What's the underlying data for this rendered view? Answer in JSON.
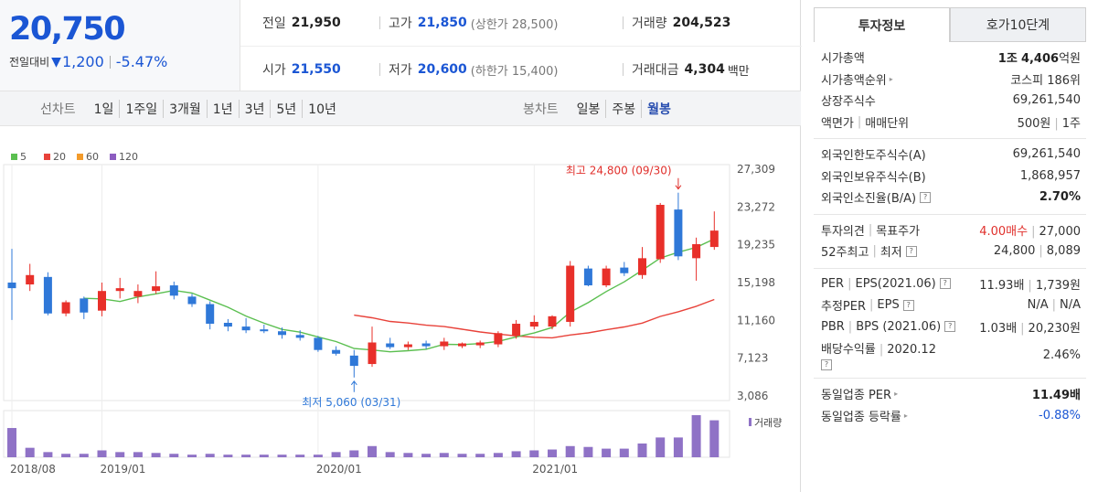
{
  "price": {
    "current": "20,750",
    "change_label": "전일대비",
    "change": "1,200",
    "change_pct": "-5.47%",
    "color": "#1b56d4"
  },
  "summary": {
    "prev_label": "전일",
    "prev": "21,950",
    "high_label": "고가",
    "high": "21,850",
    "upper_limit": "(상한가 28,500)",
    "volume_label": "거래량",
    "volume": "204,523",
    "open_label": "시가",
    "open": "21,550",
    "low_label": "저가",
    "low": "20,600",
    "lower_limit": "(하한가 15,400)",
    "amount_label": "거래대금",
    "amount": "4,304",
    "amount_unit": "백만"
  },
  "line_tabs": {
    "label": "선차트",
    "items": [
      "1일",
      "1주일",
      "3개월",
      "1년",
      "3년",
      "5년",
      "10년"
    ]
  },
  "candle_tabs": {
    "label": "봉차트",
    "items": [
      "일봉",
      "주봉",
      "월봉"
    ],
    "selected": "월봉"
  },
  "chart_data": {
    "type": "candlestick",
    "legend": [
      "5",
      "20",
      "60",
      "120"
    ],
    "legend_colors": [
      "#5bbf50",
      "#e8423a",
      "#f39b2b",
      "#8c5cc0"
    ],
    "y_ticks": [
      "27,309",
      "23,272",
      "19,235",
      "15,198",
      "11,160",
      "7,123",
      "3,086"
    ],
    "ylim": [
      3086,
      27309
    ],
    "x_labels": [
      "2018/08",
      "2019/01",
      "2020/01",
      "2021/01"
    ],
    "volume_label": "거래량",
    "high_annotation": "최고 24,800 (09/30)",
    "low_annotation": "최저 5,060 (03/31)",
    "candles": [
      {
        "o": 15200,
        "h": 18800,
        "l": 11200,
        "c": 14600
      },
      {
        "o": 15000,
        "h": 17200,
        "l": 14300,
        "c": 16000
      },
      {
        "o": 15800,
        "h": 16300,
        "l": 11700,
        "c": 11900
      },
      {
        "o": 11900,
        "h": 13300,
        "l": 11600,
        "c": 13100
      },
      {
        "o": 13500,
        "h": 13700,
        "l": 11300,
        "c": 12000
      },
      {
        "o": 12200,
        "h": 15200,
        "l": 11600,
        "c": 14300
      },
      {
        "o": 14300,
        "h": 15700,
        "l": 13500,
        "c": 14600
      },
      {
        "o": 13700,
        "h": 15000,
        "l": 13000,
        "c": 14300
      },
      {
        "o": 14300,
        "h": 16400,
        "l": 14000,
        "c": 14800
      },
      {
        "o": 14900,
        "h": 15300,
        "l": 13400,
        "c": 13800
      },
      {
        "o": 13700,
        "h": 14000,
        "l": 12600,
        "c": 12900
      },
      {
        "o": 12900,
        "h": 13200,
        "l": 10200,
        "c": 10800
      },
      {
        "o": 10900,
        "h": 11300,
        "l": 10000,
        "c": 10500
      },
      {
        "o": 10500,
        "h": 11400,
        "l": 9800,
        "c": 10100
      },
      {
        "o": 10200,
        "h": 10700,
        "l": 9800,
        "c": 10000
      },
      {
        "o": 10000,
        "h": 10400,
        "l": 9200,
        "c": 9600
      },
      {
        "o": 9600,
        "h": 10100,
        "l": 9000,
        "c": 9300
      },
      {
        "o": 9300,
        "h": 9500,
        "l": 7800,
        "c": 8000
      },
      {
        "o": 8000,
        "h": 8400,
        "l": 7400,
        "c": 7600
      },
      {
        "o": 7400,
        "h": 8000,
        "l": 5060,
        "c": 6300
      },
      {
        "o": 6500,
        "h": 10500,
        "l": 6200,
        "c": 8800
      },
      {
        "o": 8700,
        "h": 9300,
        "l": 8100,
        "c": 8300
      },
      {
        "o": 8300,
        "h": 8900,
        "l": 8000,
        "c": 8600
      },
      {
        "o": 8700,
        "h": 9000,
        "l": 8100,
        "c": 8400
      },
      {
        "o": 8400,
        "h": 9300,
        "l": 8000,
        "c": 8900
      },
      {
        "o": 8400,
        "h": 8800,
        "l": 8200,
        "c": 8700
      },
      {
        "o": 8500,
        "h": 9000,
        "l": 8200,
        "c": 8800
      },
      {
        "o": 8600,
        "h": 10000,
        "l": 8300,
        "c": 9800
      },
      {
        "o": 9500,
        "h": 11200,
        "l": 9200,
        "c": 10800
      },
      {
        "o": 10500,
        "h": 11700,
        "l": 10200,
        "c": 11000
      },
      {
        "o": 10500,
        "h": 11700,
        "l": 10200,
        "c": 11600
      },
      {
        "o": 11000,
        "h": 17500,
        "l": 10500,
        "c": 17000
      },
      {
        "o": 16700,
        "h": 17000,
        "l": 14800,
        "c": 14900
      },
      {
        "o": 14900,
        "h": 17000,
        "l": 14700,
        "c": 16700
      },
      {
        "o": 16800,
        "h": 17400,
        "l": 15900,
        "c": 16200
      },
      {
        "o": 16000,
        "h": 19000,
        "l": 15600,
        "c": 17800
      },
      {
        "o": 17700,
        "h": 23700,
        "l": 17300,
        "c": 23500
      },
      {
        "o": 23000,
        "h": 24800,
        "l": 17600,
        "c": 18000
      },
      {
        "o": 17800,
        "h": 20000,
        "l": 15400,
        "c": 19300
      },
      {
        "o": 19000,
        "h": 22800,
        "l": 18700,
        "c": 20750
      }
    ],
    "volume_levels": [
      0.68,
      0.22,
      0.12,
      0.08,
      0.08,
      0.16,
      0.12,
      0.12,
      0.1,
      0.08,
      0.06,
      0.08,
      0.06,
      0.06,
      0.06,
      0.06,
      0.06,
      0.06,
      0.12,
      0.16,
      0.26,
      0.12,
      0.1,
      0.08,
      0.1,
      0.08,
      0.08,
      0.1,
      0.14,
      0.16,
      0.18,
      0.26,
      0.24,
      0.2,
      0.2,
      0.32,
      0.46,
      0.46,
      0.98,
      0.86
    ]
  },
  "right_tabs": [
    "투자정보",
    "호가10단계"
  ],
  "invest": {
    "mcap_label": "시가총액",
    "mcap_a": "1조",
    "mcap_b": "4,406",
    "mcap_unit": "억원",
    "rank_label": "시가총액순위",
    "rank": "코스피 186위",
    "shares_label": "상장주식수",
    "shares": "69,261,540",
    "face_label": "액면가",
    "unit_label": "매매단위",
    "face": "500원",
    "unit": "1주",
    "foreign_limit_label": "외국인한도주식수(A)",
    "foreign_limit": "69,261,540",
    "foreign_own_label": "외국인보유주식수(B)",
    "foreign_own": "1,868,957",
    "foreign_rate_label": "외국인소진율(B/A)",
    "foreign_rate": "2.70%",
    "opinion_label": "투자의견",
    "target_label": "목표주가",
    "opinion": "4.00매수",
    "target": "27,000",
    "w52_high_label": "52주최고",
    "w52_low_label": "최저",
    "w52_high": "24,800",
    "w52_low": "8,089",
    "per_label": "PER",
    "eps_label": "EPS(2021.06)",
    "per": "11.93배",
    "eps": "1,739원",
    "eper_label": "추정PER",
    "eeps_label": "EPS",
    "eper": "N/A",
    "eeps": "N/A",
    "pbr_label": "PBR",
    "bps_label": "BPS (2021.06)",
    "pbr": "1.03배",
    "bps": "20,230원",
    "div_label": "배당수익률",
    "div_year": "2020.12",
    "div": "2.46%",
    "ind_per_label": "동일업종 PER",
    "ind_per": "11.49배",
    "ind_rate_label": "동일업종 등락률",
    "ind_rate": "-0.88%"
  }
}
